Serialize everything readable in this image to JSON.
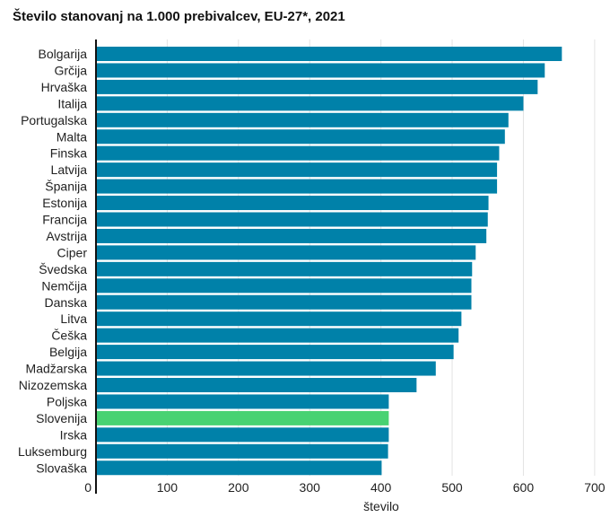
{
  "chart_data": {
    "type": "bar",
    "orientation": "horizontal",
    "title": "Število stanovanj na 1.000 prebivalcev, EU-27*, 2021",
    "xlabel": "število",
    "ylabel": "",
    "xlim": [
      0,
      700
    ],
    "xticks": [
      0,
      100,
      200,
      300,
      400,
      500,
      600,
      700
    ],
    "grid": true,
    "categories": [
      "Bolgarija",
      "Grčija",
      "Hrvaška",
      "Italija",
      "Portugalska",
      "Malta",
      "Finska",
      "Latvija",
      "Španija",
      "Estonija",
      "Francija",
      "Avstrija",
      "Ciper",
      "Švedska",
      "Nemčija",
      "Danska",
      "Litva",
      "Češka",
      "Belgija",
      "Madžarska",
      "Nizozemska",
      "Poljska",
      "Slovenija",
      "Irska",
      "Luksemburg",
      "Slovaška"
    ],
    "values": [
      654,
      630,
      620,
      600,
      579,
      574,
      566,
      563,
      563,
      551,
      550,
      548,
      533,
      528,
      527,
      527,
      513,
      509,
      502,
      477,
      450,
      411,
      411,
      411,
      410,
      401
    ],
    "bar_color": "#0081a9",
    "highlight": {
      "category": "Slovenija",
      "color": "#48d272"
    }
  }
}
